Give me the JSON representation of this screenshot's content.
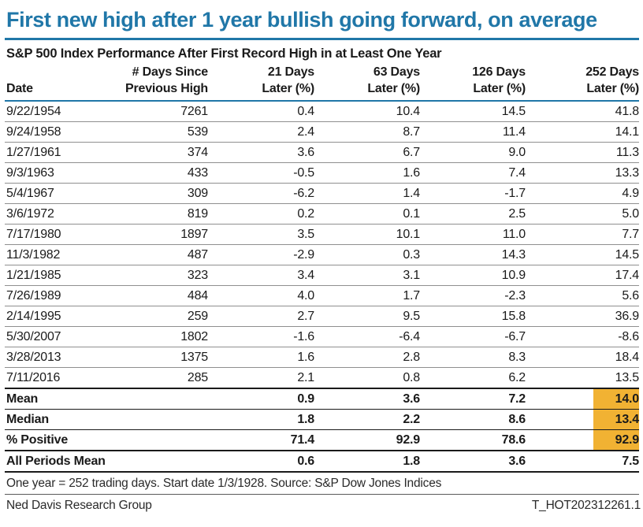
{
  "title": "First new high after 1 year bullish going forward, on average",
  "table": {
    "subtitle": "S&P 500 Index Performance After First Record High in at Least One Year",
    "columns": [
      {
        "line1": "",
        "line2": "Date"
      },
      {
        "line1": "# Days Since",
        "line2": "Previous High"
      },
      {
        "line1": "21 Days",
        "line2": "Later (%)"
      },
      {
        "line1": "63 Days",
        "line2": "Later (%)"
      },
      {
        "line1": "126 Days",
        "line2": "Later (%)"
      },
      {
        "line1": "252 Days",
        "line2": "Later (%)"
      }
    ],
    "rows": [
      {
        "date": "9/22/1954",
        "days": "7261",
        "d21": "0.4",
        "d63": "10.4",
        "d126": "14.5",
        "d252": "41.8"
      },
      {
        "date": "9/24/1958",
        "days": "539",
        "d21": "2.4",
        "d63": "8.7",
        "d126": "11.4",
        "d252": "14.1"
      },
      {
        "date": "1/27/1961",
        "days": "374",
        "d21": "3.6",
        "d63": "6.7",
        "d126": "9.0",
        "d252": "11.3"
      },
      {
        "date": "9/3/1963",
        "days": "433",
        "d21": "-0.5",
        "d63": "1.6",
        "d126": "7.4",
        "d252": "13.3"
      },
      {
        "date": "5/4/1967",
        "days": "309",
        "d21": "-6.2",
        "d63": "1.4",
        "d126": "-1.7",
        "d252": "4.9"
      },
      {
        "date": "3/6/1972",
        "days": "819",
        "d21": "0.2",
        "d63": "0.1",
        "d126": "2.5",
        "d252": "5.0"
      },
      {
        "date": "7/17/1980",
        "days": "1897",
        "d21": "3.5",
        "d63": "10.1",
        "d126": "11.0",
        "d252": "7.7"
      },
      {
        "date": "11/3/1982",
        "days": "487",
        "d21": "-2.9",
        "d63": "0.3",
        "d126": "14.3",
        "d252": "14.5"
      },
      {
        "date": "1/21/1985",
        "days": "323",
        "d21": "3.4",
        "d63": "3.1",
        "d126": "10.9",
        "d252": "17.4"
      },
      {
        "date": "7/26/1989",
        "days": "484",
        "d21": "4.0",
        "d63": "1.7",
        "d126": "-2.3",
        "d252": "5.6"
      },
      {
        "date": "2/14/1995",
        "days": "259",
        "d21": "2.7",
        "d63": "9.5",
        "d126": "15.8",
        "d252": "36.9"
      },
      {
        "date": "5/30/2007",
        "days": "1802",
        "d21": "-1.6",
        "d63": "-6.4",
        "d126": "-6.7",
        "d252": "-8.6"
      },
      {
        "date": "3/28/2013",
        "days": "1375",
        "d21": "1.6",
        "d63": "2.8",
        "d126": "8.3",
        "d252": "18.4"
      },
      {
        "date": "7/11/2016",
        "days": "285",
        "d21": "2.1",
        "d63": "0.8",
        "d126": "6.2",
        "d252": "13.5"
      }
    ],
    "summary_rows": [
      {
        "label": "Mean",
        "days": "",
        "d21": "0.9",
        "d63": "3.6",
        "d126": "7.2",
        "d252": "14.0",
        "highlight": true
      },
      {
        "label": "Median",
        "days": "",
        "d21": "1.8",
        "d63": "2.2",
        "d126": "8.6",
        "d252": "13.4",
        "highlight": true
      },
      {
        "label": "% Positive",
        "days": "",
        "d21": "71.4",
        "d63": "92.9",
        "d126": "78.6",
        "d252": "92.9",
        "highlight": true
      },
      {
        "label": "All Periods Mean",
        "days": "",
        "d21": "0.6",
        "d63": "1.8",
        "d126": "3.6",
        "d252": "7.5",
        "highlight": false
      }
    ]
  },
  "footnote": "One year = 252 trading days. Start date 1/3/1928. Source: S&P Dow Jones Indices",
  "footer_left": "Ned Davis Research Group",
  "footer_right": "T_HOT202312261.1",
  "colors": {
    "accent_blue": "#2077A8",
    "highlight_amber": "#F1B233",
    "row_separator_gray": "#8f8f8f",
    "summary_separator_black": "#1a1a1a"
  },
  "chart_data": {
    "type": "table",
    "title": "First new high after 1 year bullish going forward, on average",
    "subtitle": "S&P 500 Index Performance After First Record High in at Least One Year",
    "columns": [
      "Date",
      "# Days Since Previous High",
      "21 Days Later (%)",
      "63 Days Later (%)",
      "126 Days Later (%)",
      "252 Days Later (%)"
    ],
    "rows": [
      [
        "9/22/1954",
        7261,
        0.4,
        10.4,
        14.5,
        41.8
      ],
      [
        "9/24/1958",
        539,
        2.4,
        8.7,
        11.4,
        14.1
      ],
      [
        "1/27/1961",
        374,
        3.6,
        6.7,
        9.0,
        11.3
      ],
      [
        "9/3/1963",
        433,
        -0.5,
        1.6,
        7.4,
        13.3
      ],
      [
        "5/4/1967",
        309,
        -6.2,
        1.4,
        -1.7,
        4.9
      ],
      [
        "3/6/1972",
        819,
        0.2,
        0.1,
        2.5,
        5.0
      ],
      [
        "7/17/1980",
        1897,
        3.5,
        10.1,
        11.0,
        7.7
      ],
      [
        "11/3/1982",
        487,
        -2.9,
        0.3,
        14.3,
        14.5
      ],
      [
        "1/21/1985",
        323,
        3.4,
        3.1,
        10.9,
        17.4
      ],
      [
        "7/26/1989",
        484,
        4.0,
        1.7,
        -2.3,
        5.6
      ],
      [
        "2/14/1995",
        259,
        2.7,
        9.5,
        15.8,
        36.9
      ],
      [
        "5/30/2007",
        1802,
        -1.6,
        -6.4,
        -6.7,
        -8.6
      ],
      [
        "3/28/2013",
        1375,
        1.6,
        2.8,
        8.3,
        18.4
      ],
      [
        "7/11/2016",
        285,
        2.1,
        0.8,
        6.2,
        13.5
      ]
    ],
    "summary": {
      "Mean": [
        0.9,
        3.6,
        7.2,
        14.0
      ],
      "Median": [
        1.8,
        2.2,
        8.6,
        13.4
      ],
      "% Positive": [
        71.4,
        92.9,
        78.6,
        92.9
      ],
      "All Periods Mean": [
        0.6,
        1.8,
        3.6,
        7.5
      ]
    },
    "highlighted_cells": "252 Days Later column for Mean, Median, % Positive"
  }
}
